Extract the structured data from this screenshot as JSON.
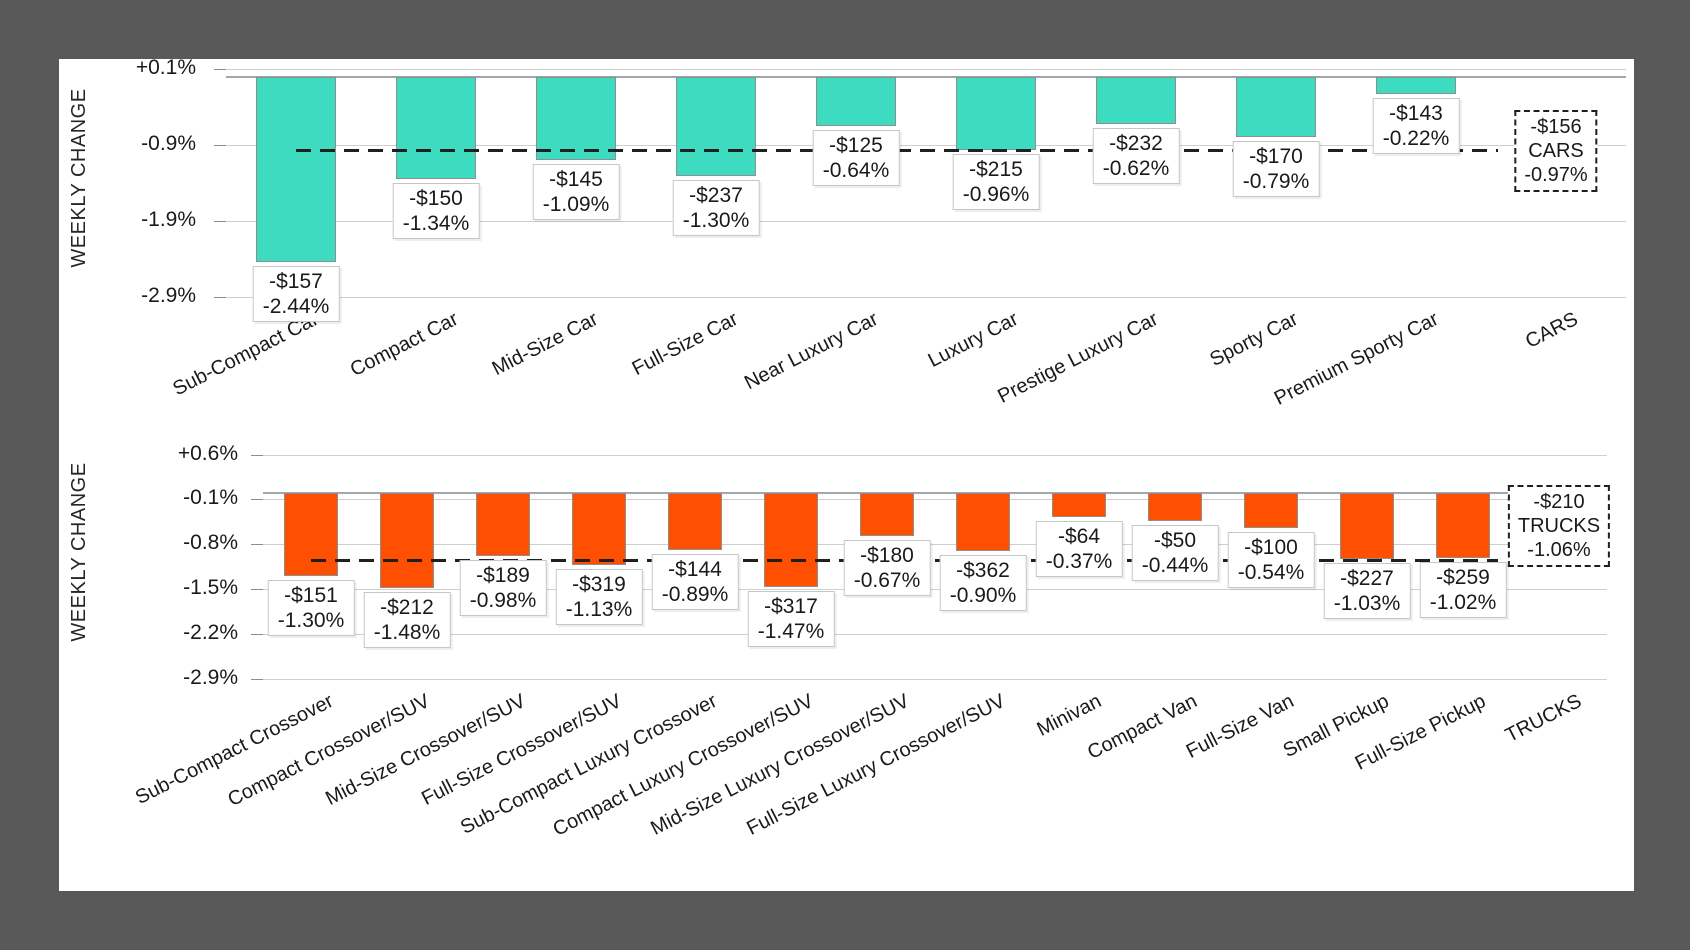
{
  "palette": {
    "frame_background": "#595959",
    "canvas_background": "#ffffff",
    "cars_bar_color": "#3DDCC0",
    "trucks_bar_color": "#FF4F00",
    "average_line_color": "#1F1F1F"
  },
  "chart_data": [
    {
      "id": "cars",
      "type": "bar",
      "title": "",
      "ylabel": "WEEKLY CHANGE",
      "bar_color": "#3DDCC0",
      "yticks": [
        "+0.1%",
        "-0.9%",
        "-1.9%",
        "-2.9%"
      ],
      "ytick_values": [
        0.1,
        -0.9,
        -1.9,
        -2.9
      ],
      "ylim": [
        0.1,
        -2.9
      ],
      "grid": true,
      "legend_position": "none",
      "bars": [
        {
          "category": "Sub-Compact Car",
          "dollar": "-$157",
          "percent": "-2.44%",
          "value": -2.44
        },
        {
          "category": "Compact Car",
          "dollar": "-$150",
          "percent": "-1.34%",
          "value": -1.34
        },
        {
          "category": "Mid-Size Car",
          "dollar": "-$145",
          "percent": "-1.09%",
          "value": -1.09
        },
        {
          "category": "Full-Size Car",
          "dollar": "-$237",
          "percent": "-1.30%",
          "value": -1.3
        },
        {
          "category": "Near Luxury Car",
          "dollar": "-$125",
          "percent": "-0.64%",
          "value": -0.64
        },
        {
          "category": "Luxury Car",
          "dollar": "-$215",
          "percent": "-0.96%",
          "value": -0.96
        },
        {
          "category": "Prestige Luxury Car",
          "dollar": "-$232",
          "percent": "-0.62%",
          "value": -0.62
        },
        {
          "category": "Sporty Car",
          "dollar": "-$170",
          "percent": "-0.79%",
          "value": -0.79
        },
        {
          "category": "Premium Sporty Car",
          "dollar": "-$143",
          "percent": "-0.22%",
          "value": -0.22
        }
      ],
      "average": {
        "category": "CARS",
        "dollar": "-$156",
        "percent": "-0.97%",
        "value": -0.97
      }
    },
    {
      "id": "trucks",
      "type": "bar",
      "title": "",
      "ylabel": "WEEKLY CHANGE",
      "bar_color": "#FF4F00",
      "yticks": [
        "+0.6%",
        "-0.1%",
        "-0.8%",
        "-1.5%",
        "-2.2%",
        "-2.9%"
      ],
      "ytick_values": [
        0.6,
        -0.1,
        -0.8,
        -1.5,
        -2.2,
        -2.9
      ],
      "ylim": [
        0.6,
        -2.9
      ],
      "grid": true,
      "legend_position": "none",
      "bars": [
        {
          "category": "Sub-Compact Crossover",
          "dollar": "-$151",
          "percent": "-1.30%",
          "value": -1.3
        },
        {
          "category": "Compact Crossover/SUV",
          "dollar": "-$212",
          "percent": "-1.48%",
          "value": -1.48
        },
        {
          "category": "Mid-Size Crossover/SUV",
          "dollar": "-$189",
          "percent": "-0.98%",
          "value": -0.98
        },
        {
          "category": "Full-Size Crossover/SUV",
          "dollar": "-$319",
          "percent": "-1.13%",
          "value": -1.13
        },
        {
          "category": "Sub-Compact Luxury Crossover",
          "dollar": "-$144",
          "percent": "-0.89%",
          "value": -0.89
        },
        {
          "category": "Compact Luxury Crossover/SUV",
          "dollar": "-$317",
          "percent": "-1.47%",
          "value": -1.47
        },
        {
          "category": "Mid-Size Luxury Crossover/SUV",
          "dollar": "-$180",
          "percent": "-0.67%",
          "value": -0.67
        },
        {
          "category": "Full-Size Luxury Crossover/SUV",
          "dollar": "-$362",
          "percent": "-0.90%",
          "value": -0.9
        },
        {
          "category": "Minivan",
          "dollar": "-$64",
          "percent": "-0.37%",
          "value": -0.37
        },
        {
          "category": "Compact Van",
          "dollar": "-$50",
          "percent": "-0.44%",
          "value": -0.44
        },
        {
          "category": "Full-Size Van",
          "dollar": "-$100",
          "percent": "-0.54%",
          "value": -0.54
        },
        {
          "category": "Small Pickup",
          "dollar": "-$227",
          "percent": "-1.03%",
          "value": -1.03
        },
        {
          "category": "Full-Size Pickup",
          "dollar": "-$259",
          "percent": "-1.02%",
          "value": -1.02
        }
      ],
      "average": {
        "category": "TRUCKS",
        "dollar": "-$210",
        "percent": "-1.06%",
        "value": -1.06
      }
    }
  ]
}
